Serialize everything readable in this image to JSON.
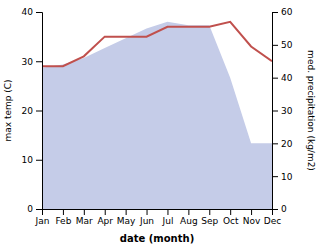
{
  "chart_data": {
    "type": "line",
    "xlabel": "date (month)",
    "ylabel": "max temp (C)",
    "y2label": "med. precipitation (kg/m2)",
    "categories": [
      "Jan",
      "Feb",
      "Mar",
      "Apr",
      "May",
      "Jun",
      "Jul",
      "Aug",
      "Sep",
      "Oct",
      "Nov",
      "Dec"
    ],
    "series": [
      {
        "type": "area",
        "axis": "y2",
        "color": "#c5cce8",
        "values": [
          43,
          44,
          46,
          49,
          52,
          55,
          57,
          56,
          56,
          40,
          20,
          20
        ]
      },
      {
        "type": "line",
        "color": "#c0504d",
        "values": [
          29,
          29,
          31,
          35,
          35,
          35,
          37,
          37,
          37,
          38,
          33,
          30
        ]
      }
    ],
    "ylim": [
      0,
      40
    ],
    "yticks": [
      0,
      10,
      20,
      30,
      40
    ],
    "y2lim": [
      0,
      60
    ],
    "y2ticks": [
      0,
      10,
      20,
      30,
      40,
      50,
      60
    ],
    "grid": false
  }
}
